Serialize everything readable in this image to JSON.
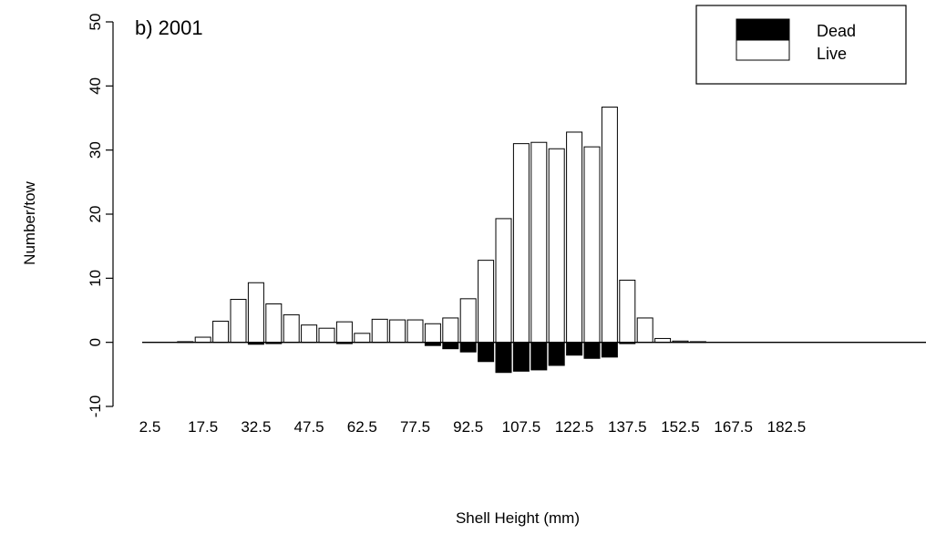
{
  "chart_data": {
    "type": "bar",
    "title": "b) 2001",
    "xlabel": "Shell Height (mm)",
    "ylabel": "Number/tow",
    "ylim": [
      -10,
      50
    ],
    "yticks": [
      "-10",
      "0",
      "10",
      "20",
      "30",
      "40",
      "50"
    ],
    "xtick_labels": [
      "2.5",
      "17.5",
      "32.5",
      "47.5",
      "62.5",
      "77.5",
      "92.5",
      "107.5",
      "122.5",
      "137.5",
      "152.5",
      "167.5",
      "182.5"
    ],
    "categories": [
      2.5,
      7.5,
      12.5,
      17.5,
      22.5,
      27.5,
      32.5,
      37.5,
      42.5,
      47.5,
      52.5,
      57.5,
      62.5,
      67.5,
      72.5,
      77.5,
      82.5,
      87.5,
      92.5,
      97.5,
      102.5,
      107.5,
      112.5,
      117.5,
      122.5,
      127.5,
      132.5,
      137.5,
      142.5,
      147.5,
      152.5,
      157.5,
      162.5,
      167.5,
      172.5,
      177.5,
      182.5,
      187.5,
      192.5
    ],
    "series": [
      {
        "name": "Live",
        "color": "#ffffff",
        "values": [
          0,
          0,
          0.1,
          0.8,
          3.3,
          6.7,
          9.3,
          6.0,
          4.3,
          2.7,
          2.2,
          3.2,
          1.4,
          3.6,
          3.5,
          3.5,
          2.9,
          3.8,
          6.8,
          12.8,
          19.3,
          31.0,
          31.2,
          30.2,
          32.8,
          30.5,
          36.7,
          9.7,
          3.8,
          0.6,
          0.2,
          0.1,
          0,
          0,
          0,
          0,
          0,
          0,
          0
        ]
      },
      {
        "name": "Dead",
        "color": "#000000",
        "values": [
          0,
          0,
          0,
          0,
          0,
          0,
          -0.3,
          -0.2,
          0,
          0,
          0,
          -0.2,
          0,
          0,
          0,
          0,
          -0.5,
          -1.0,
          -1.5,
          -3.0,
          -4.7,
          -4.5,
          -4.3,
          -3.6,
          -2.0,
          -2.5,
          -2.3,
          -0.2,
          0,
          0,
          0,
          0,
          0,
          0,
          0,
          0,
          0,
          0,
          0
        ]
      }
    ],
    "legend": {
      "position": "top-right",
      "entries": [
        {
          "label": "Dead",
          "color": "#000000"
        },
        {
          "label": "Live",
          "color": "#ffffff"
        }
      ]
    },
    "grid": false
  }
}
